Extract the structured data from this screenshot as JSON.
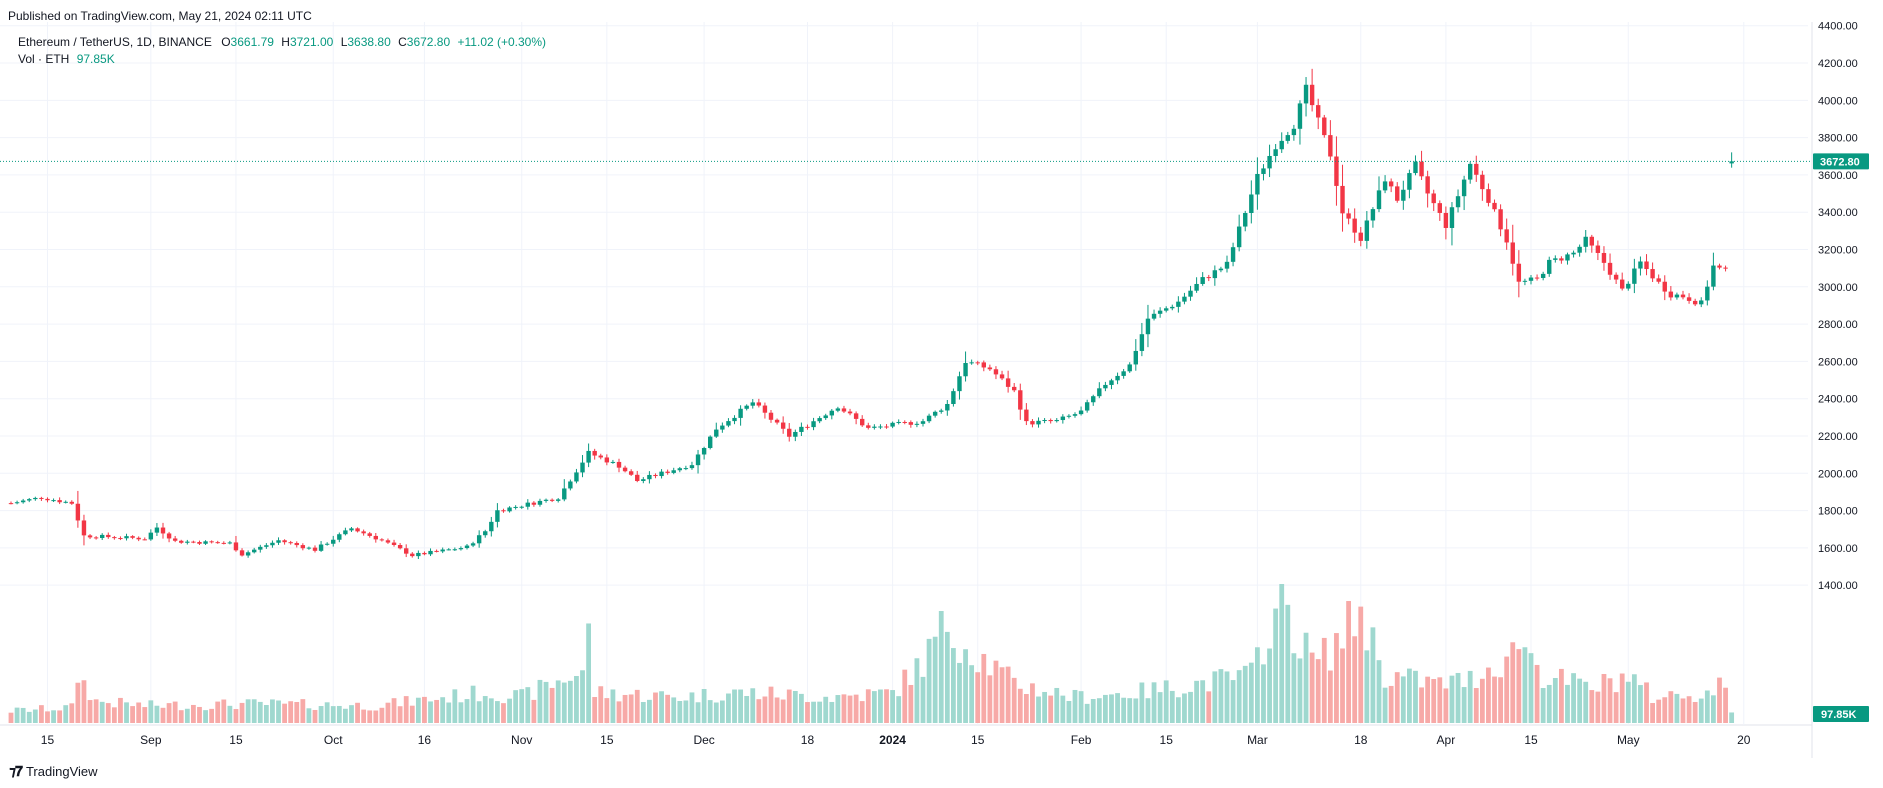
{
  "header": {
    "published": "Published on TradingView.com, May 21, 2024 02:11 UTC"
  },
  "legend": {
    "symbol": "Ethereum / TetherUS, 1D, BINANCE",
    "open_label": "O",
    "open": "3661.79",
    "high_label": "H",
    "high": "3721.00",
    "low_label": "L",
    "low": "3638.80",
    "close_label": "C",
    "close": "3672.80",
    "change": "+11.02 (+0.30%)",
    "vol_label": "Vol · ETH",
    "vol_value": "97.85K"
  },
  "footer": {
    "brand": "TradingView",
    "brand_icon": "tradingview-logo-icon"
  },
  "colors": {
    "up": "#089981",
    "down": "#f23645",
    "up_vol": "#9fd8cf",
    "down_vol": "#f7a9a7",
    "grid": "#f0f3fa",
    "text": "#131722"
  },
  "chart_data": {
    "type": "candlestick",
    "title": "Ethereum / TetherUS, 1D, BINANCE",
    "price_axis": {
      "ticks": [
        4400,
        4200,
        4000,
        3800,
        3600,
        3400,
        3200,
        3000,
        2800,
        2600,
        2400,
        2200,
        2000,
        1800,
        1600,
        1400
      ],
      "tick_labels": [
        "4400.00",
        "4200.00",
        "4000.00",
        "3800.00",
        "3600.00",
        "3400.00",
        "3200.00",
        "3000.00",
        "2800.00",
        "2600.00",
        "2400.00",
        "2200.00",
        "2000.00",
        "1800.00",
        "1600.00",
        "1400.00"
      ],
      "range": [
        1283,
        4420
      ]
    },
    "last_price_label": "3672.80",
    "volume_label": "97.85K",
    "time_axis": {
      "labels": [
        {
          "index": 6,
          "label": "15"
        },
        {
          "index": 23,
          "label": "Sep"
        },
        {
          "index": 37,
          "label": "15"
        },
        {
          "index": 53,
          "label": "Oct"
        },
        {
          "index": 68,
          "label": "16"
        },
        {
          "index": 84,
          "label": "Nov"
        },
        {
          "index": 98,
          "label": "15"
        },
        {
          "index": 114,
          "label": "Dec"
        },
        {
          "index": 131,
          "label": "18"
        },
        {
          "index": 145,
          "label": "2024"
        },
        {
          "index": 159,
          "label": "15"
        },
        {
          "index": 176,
          "label": "Feb"
        },
        {
          "index": 190,
          "label": "15"
        },
        {
          "index": 205,
          "label": "Mar"
        },
        {
          "index": 222,
          "label": "18"
        },
        {
          "index": 236,
          "label": "Apr"
        },
        {
          "index": 250,
          "label": "15"
        },
        {
          "index": 266,
          "label": "May"
        },
        {
          "index": 285,
          "label": "20"
        }
      ]
    },
    "anchors": [
      [
        0,
        1840
      ],
      [
        5,
        1870
      ],
      [
        10,
        1840
      ],
      [
        12,
        1665
      ],
      [
        22,
        1650
      ],
      [
        24,
        1710
      ],
      [
        27,
        1635
      ],
      [
        36,
        1625
      ],
      [
        38,
        1565
      ],
      [
        44,
        1640
      ],
      [
        50,
        1590
      ],
      [
        56,
        1705
      ],
      [
        61,
        1640
      ],
      [
        66,
        1560
      ],
      [
        72,
        1590
      ],
      [
        75,
        1605
      ],
      [
        78,
        1690
      ],
      [
        80,
        1800
      ],
      [
        90,
        1870
      ],
      [
        95,
        2110
      ],
      [
        100,
        2040
      ],
      [
        103,
        1960
      ],
      [
        112,
        2050
      ],
      [
        116,
        2240
      ],
      [
        122,
        2380
      ],
      [
        128,
        2200
      ],
      [
        131,
        2260
      ],
      [
        136,
        2360
      ],
      [
        141,
        2240
      ],
      [
        150,
        2280
      ],
      [
        154,
        2370
      ],
      [
        157,
        2600
      ],
      [
        161,
        2560
      ],
      [
        165,
        2440
      ],
      [
        167,
        2270
      ],
      [
        172,
        2280
      ],
      [
        176,
        2330
      ],
      [
        180,
        2480
      ],
      [
        184,
        2580
      ],
      [
        187,
        2830
      ],
      [
        192,
        2920
      ],
      [
        196,
        3040
      ],
      [
        200,
        3120
      ],
      [
        205,
        3590
      ],
      [
        208,
        3760
      ],
      [
        211,
        3870
      ],
      [
        213,
        4060
      ],
      [
        217,
        3710
      ],
      [
        219,
        3400
      ],
      [
        222,
        3260
      ],
      [
        226,
        3580
      ],
      [
        228,
        3470
      ],
      [
        231,
        3650
      ],
      [
        233,
        3500
      ],
      [
        236,
        3330
      ],
      [
        238,
        3490
      ],
      [
        240,
        3660
      ],
      [
        243,
        3470
      ],
      [
        246,
        3250
      ],
      [
        248,
        3020
      ],
      [
        251,
        3040
      ],
      [
        253,
        3130
      ],
      [
        257,
        3180
      ],
      [
        259,
        3250
      ],
      [
        262,
        3130
      ],
      [
        265,
        2980
      ],
      [
        268,
        3130
      ],
      [
        271,
        3020
      ],
      [
        273,
        2960
      ],
      [
        275,
        2950
      ],
      [
        278,
        2910
      ],
      [
        280,
        3110
      ],
      [
        282,
        3080
      ],
      [
        283,
        3665
      ]
    ],
    "volume_anchors": [
      [
        0,
        0.14
      ],
      [
        10,
        0.18
      ],
      [
        11,
        0.55
      ],
      [
        14,
        0.25
      ],
      [
        22,
        0.2
      ],
      [
        40,
        0.22
      ],
      [
        60,
        0.2
      ],
      [
        78,
        0.35
      ],
      [
        84,
        0.3
      ],
      [
        94,
        0.6
      ],
      [
        95,
        1.0
      ],
      [
        96,
        0.35
      ],
      [
        110,
        0.3
      ],
      [
        120,
        0.35
      ],
      [
        135,
        0.3
      ],
      [
        145,
        0.35
      ],
      [
        150,
        0.7
      ],
      [
        154,
        1.15
      ],
      [
        157,
        0.9
      ],
      [
        165,
        0.45
      ],
      [
        175,
        0.3
      ],
      [
        185,
        0.35
      ],
      [
        195,
        0.45
      ],
      [
        204,
        0.55
      ],
      [
        207,
        1.15
      ],
      [
        210,
        1.35
      ],
      [
        212,
        0.9
      ],
      [
        215,
        0.7
      ],
      [
        219,
        1.0
      ],
      [
        222,
        1.3
      ],
      [
        226,
        0.55
      ],
      [
        235,
        0.45
      ],
      [
        240,
        0.5
      ],
      [
        247,
        0.8
      ],
      [
        248,
        1.0
      ],
      [
        252,
        0.55
      ],
      [
        260,
        0.4
      ],
      [
        266,
        0.55
      ],
      [
        270,
        0.3
      ],
      [
        280,
        0.35
      ],
      [
        282,
        0.5
      ],
      [
        283,
        0.15
      ]
    ],
    "candle_count": 284
  }
}
